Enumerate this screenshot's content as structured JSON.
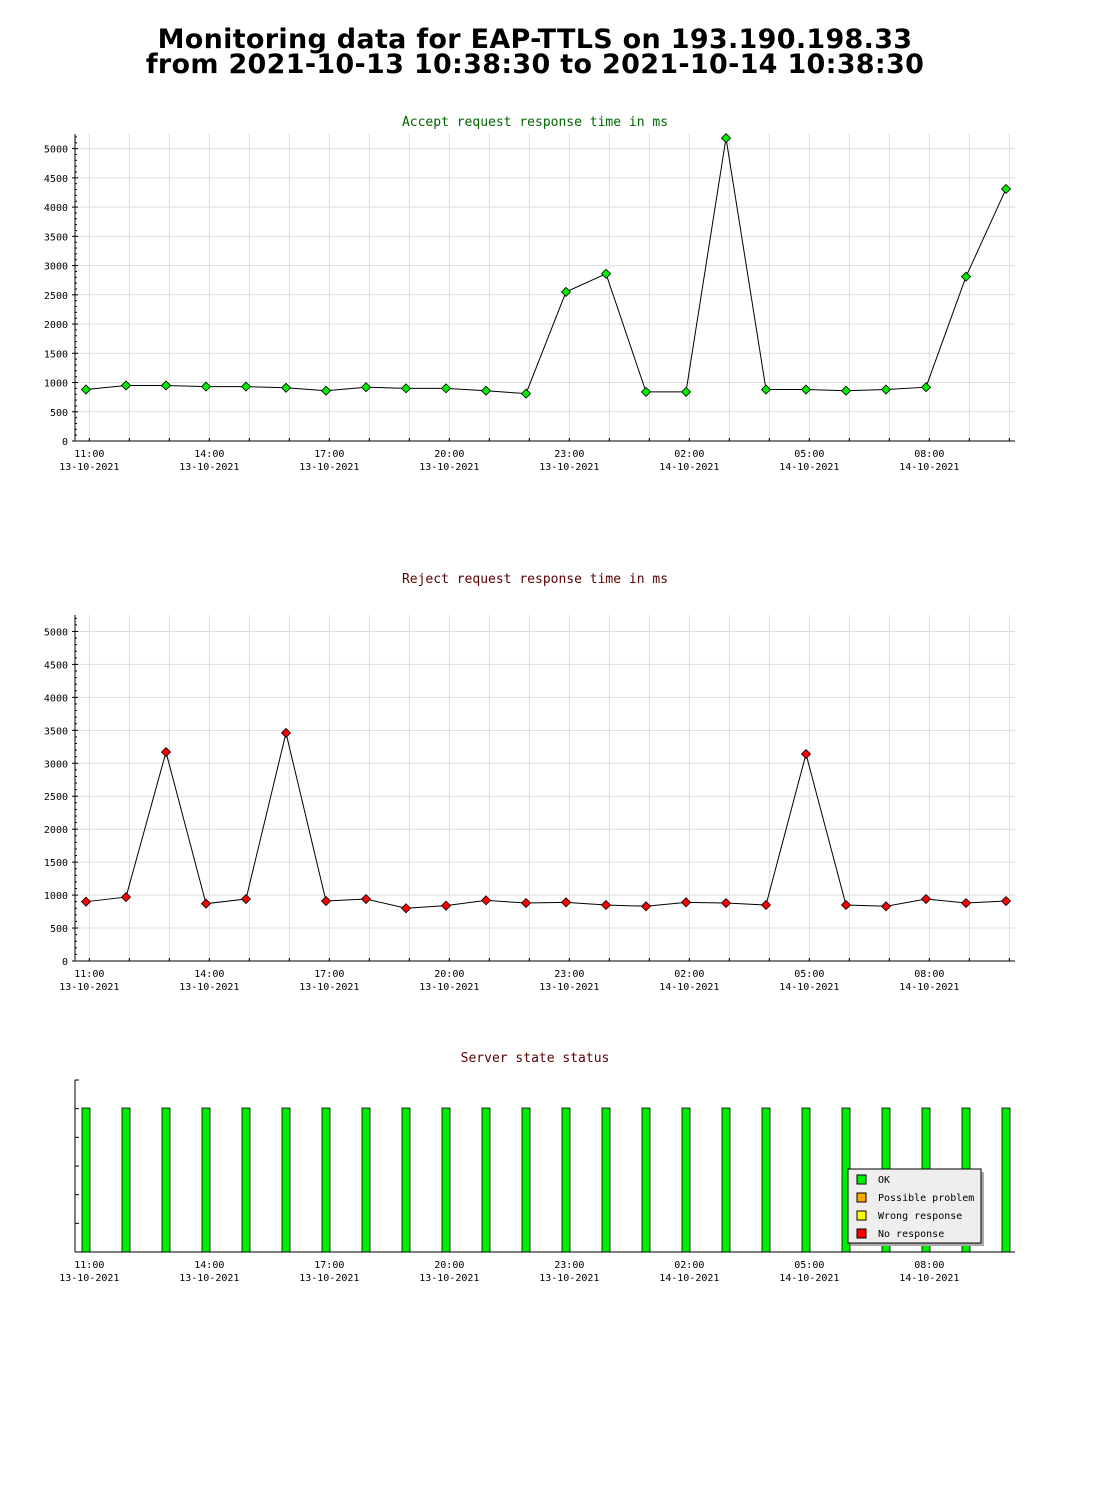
{
  "page": {
    "title_line1": "Monitoring data for EAP-TTLS on 193.190.198.33",
    "title_line2": "from 2021-10-13 10:38:30 to 2021-10-14 10:38:30"
  },
  "colors": {
    "accept_title": "#006400",
    "reject_title": "#5a0000",
    "status_title": "#5a0000",
    "accept_marker": "#00ee00",
    "reject_marker": "#ff0000",
    "ok": "#00ee00",
    "possible_problem": "#ffa500",
    "wrong_response": "#ffff00",
    "no_response": "#ff0000",
    "grid": "#dddddd"
  },
  "x_axis_ticks": [
    {
      "time": "11:00",
      "date": "13-10-2021"
    },
    {
      "time": "14:00",
      "date": "13-10-2021"
    },
    {
      "time": "17:00",
      "date": "13-10-2021"
    },
    {
      "time": "20:00",
      "date": "13-10-2021"
    },
    {
      "time": "23:00",
      "date": "13-10-2021"
    },
    {
      "time": "02:00",
      "date": "14-10-2021"
    },
    {
      "time": "05:00",
      "date": "14-10-2021"
    },
    {
      "time": "08:00",
      "date": "14-10-2021"
    }
  ],
  "chart_data": [
    {
      "type": "line",
      "title": "Accept request response time in ms",
      "ylim": [
        0,
        5250
      ],
      "yticks": [
        0,
        500,
        1000,
        1500,
        2000,
        2500,
        3000,
        3500,
        4000,
        4500,
        5000
      ],
      "grid": true,
      "x": [
        "10:55",
        "11:55",
        "12:55",
        "13:55",
        "14:55",
        "15:55",
        "16:55",
        "17:55",
        "18:55",
        "19:55",
        "20:55",
        "21:55",
        "22:55",
        "23:55",
        "00:55",
        "01:55",
        "02:55",
        "03:55",
        "04:55",
        "05:55",
        "06:55",
        "07:55",
        "08:55",
        "09:55"
      ],
      "series": [
        {
          "values": [
            880,
            950,
            950,
            930,
            930,
            910,
            860,
            920,
            900,
            900,
            860,
            810,
            2550,
            2860,
            840,
            840,
            5180,
            880,
            880,
            860,
            880,
            920,
            2810,
            4310
          ]
        }
      ]
    },
    {
      "type": "line",
      "title": "Reject request response time in ms",
      "ylim": [
        0,
        5250
      ],
      "yticks": [
        0,
        500,
        1000,
        1500,
        2000,
        2500,
        3000,
        3500,
        4000,
        4500,
        5000
      ],
      "grid": true,
      "x": [
        "10:55",
        "11:55",
        "12:55",
        "13:55",
        "14:55",
        "15:55",
        "16:55",
        "17:55",
        "18:55",
        "19:55",
        "20:55",
        "21:55",
        "22:55",
        "23:55",
        "00:55",
        "01:55",
        "02:55",
        "03:55",
        "04:55",
        "05:55",
        "06:55",
        "07:55",
        "08:55",
        "09:55"
      ],
      "series": [
        {
          "values": [
            900,
            970,
            3170,
            870,
            940,
            3460,
            910,
            940,
            800,
            840,
            920,
            880,
            890,
            850,
            830,
            890,
            880,
            850,
            3140,
            850,
            830,
            940,
            880,
            910
          ]
        }
      ]
    },
    {
      "type": "bar",
      "title": "Server state status",
      "x": [
        "10:55",
        "11:55",
        "12:55",
        "13:55",
        "14:55",
        "15:55",
        "16:55",
        "17:55",
        "18:55",
        "19:55",
        "20:55",
        "21:55",
        "22:55",
        "23:55",
        "00:55",
        "01:55",
        "02:55",
        "03:55",
        "04:55",
        "05:55",
        "06:55",
        "07:55",
        "08:55",
        "09:55"
      ],
      "states": [
        "OK",
        "OK",
        "OK",
        "OK",
        "OK",
        "OK",
        "OK",
        "OK",
        "OK",
        "OK",
        "OK",
        "OK",
        "OK",
        "OK",
        "OK",
        "OK",
        "OK",
        "OK",
        "OK",
        "OK",
        "OK",
        "OK",
        "OK",
        "OK"
      ],
      "legend": [
        "OK",
        "Possible problem",
        "Wrong response",
        "No response"
      ],
      "legend_position": "bottom-right",
      "grid": false
    }
  ]
}
